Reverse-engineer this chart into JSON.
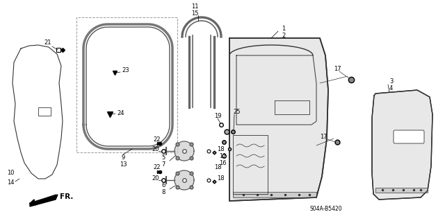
{
  "bg_color": "#ffffff",
  "line_color": "#333333",
  "gray_color": "#888888",
  "fig_width": 6.4,
  "fig_height": 3.19,
  "dpi": 100,
  "diagram_code": "S04A-B5420",
  "label_fontsize": 6.0
}
